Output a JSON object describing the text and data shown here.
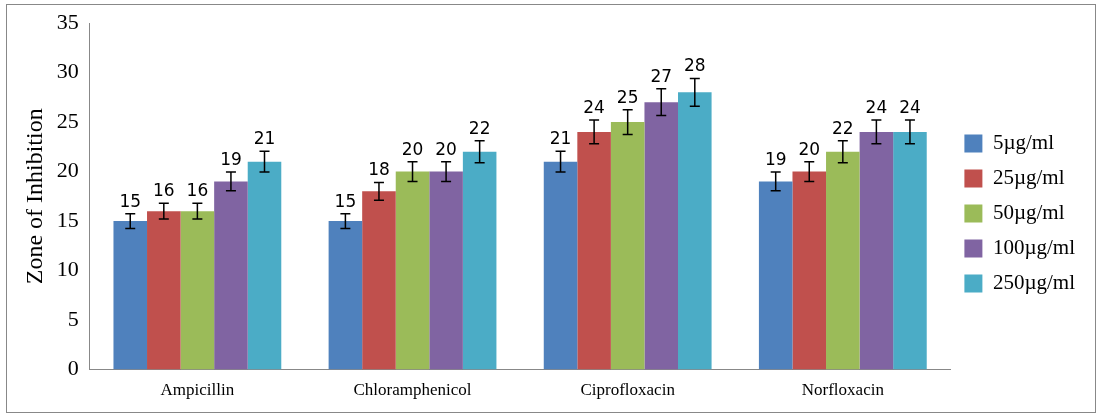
{
  "chart_data": {
    "type": "bar",
    "ylabel": "Zone of Inhibition",
    "categories": [
      "Ampicillin",
      "Chloramphenicol",
      "Ciprofloxacin",
      "Norfloxacin"
    ],
    "series": [
      {
        "name": "5µg/ml",
        "color": "#4f81bd",
        "values": [
          15,
          15,
          21,
          19
        ],
        "errors": [
          0.75,
          0.75,
          1.05,
          0.95
        ]
      },
      {
        "name": "25µg/ml",
        "color": "#c0504d",
        "values": [
          16,
          18,
          24,
          20
        ],
        "errors": [
          0.8,
          0.9,
          1.2,
          1
        ]
      },
      {
        "name": "50µg/ml",
        "color": "#9bbb59",
        "values": [
          16,
          20,
          25,
          22
        ],
        "errors": [
          0.8,
          1,
          1.25,
          1.1
        ]
      },
      {
        "name": "100µg/ml",
        "color": "#8064a2",
        "values": [
          19,
          20,
          27,
          24
        ],
        "errors": [
          0.95,
          1,
          1.35,
          1.2
        ]
      },
      {
        "name": "250µg/ml",
        "color": "#4bacc6",
        "values": [
          21,
          22,
          28,
          24
        ],
        "errors": [
          1.05,
          1.1,
          1.4,
          1.2
        ]
      }
    ],
    "ylim": [
      0,
      35
    ],
    "yticks": [
      0,
      5,
      10,
      15,
      20,
      25,
      30,
      35
    ],
    "grid": false,
    "legend": "right",
    "data_labels": true
  }
}
